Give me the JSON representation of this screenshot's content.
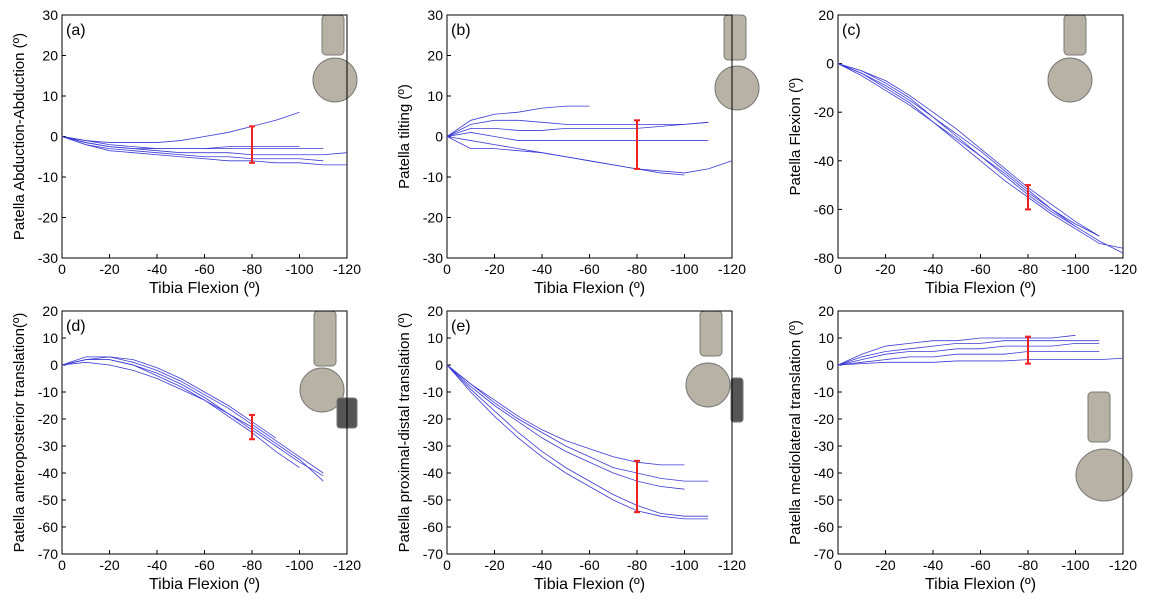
{
  "chart_data": [
    {
      "type": "line",
      "panel_label": "(a)",
      "xlabel": "Tibia Flexion (º)",
      "ylabel": "Patella Abduction-Abduction (º)",
      "xlim": [
        0,
        -120
      ],
      "xticks": [
        0,
        -20,
        -40,
        -60,
        -80,
        -100,
        -120
      ],
      "ylim": [
        -30,
        30
      ],
      "yticks": [
        -30,
        -20,
        -10,
        0,
        10,
        20,
        30
      ],
      "x": [
        0,
        -10,
        -20,
        -30,
        -40,
        -50,
        -60,
        -70,
        -80,
        -90,
        -100,
        -110,
        -120
      ],
      "series": [
        {
          "color": "#3a3ad8",
          "values": [
            0,
            -1,
            -1.5,
            -1.5,
            -1.5,
            -1,
            0,
            1,
            2.5,
            4,
            6,
            null,
            null
          ]
        },
        {
          "color": "#3a3ad8",
          "values": [
            0,
            -1,
            -2,
            -2.5,
            -3,
            -3,
            -3,
            -3,
            -3,
            -3,
            -3,
            -3,
            null
          ]
        },
        {
          "color": "#3a3ad8",
          "values": [
            0,
            -1.5,
            -2.5,
            -3,
            -3.5,
            -4,
            -4,
            -4,
            -4.5,
            -4.5,
            -4.5,
            -4.5,
            -4
          ]
        },
        {
          "color": "#3a3ad8",
          "values": [
            0,
            -2,
            -3,
            -3.5,
            -4,
            -4.5,
            -5,
            -5,
            -5.5,
            -5.5,
            -5.5,
            -6,
            null
          ]
        },
        {
          "color": "#3a3ad8",
          "values": [
            0,
            -2,
            -3.5,
            -4,
            -4.5,
            -5,
            -5.5,
            -6,
            -6,
            -6.5,
            -6.5,
            -7,
            -7
          ]
        },
        {
          "color": "#3a3ad8",
          "values": [
            0,
            -1.5,
            -2.5,
            -3,
            -3,
            -3,
            -3,
            -2.5,
            -2.5,
            -2.5,
            -2.5,
            null,
            null
          ]
        }
      ],
      "error_bar": {
        "x": -80,
        "value": -2,
        "error": 4.5,
        "color": "#ee2020"
      }
    },
    {
      "type": "line",
      "panel_label": "(b)",
      "xlabel": "Tibia Flexion (º)",
      "ylabel": "Patella tilting (º)",
      "xlim": [
        0,
        -120
      ],
      "xticks": [
        0,
        -20,
        -40,
        -60,
        -80,
        -100,
        -120
      ],
      "ylim": [
        -30,
        30
      ],
      "yticks": [
        -30,
        -20,
        -10,
        0,
        10,
        20,
        30
      ],
      "x": [
        0,
        -10,
        -20,
        -30,
        -40,
        -50,
        -60,
        -70,
        -80,
        -90,
        -100,
        -110,
        -120
      ],
      "series": [
        {
          "color": "#3a3ad8",
          "values": [
            0,
            4,
            5.5,
            6,
            7,
            7.5,
            7.5,
            null,
            null,
            null,
            null,
            null,
            null
          ]
        },
        {
          "color": "#3a3ad8",
          "values": [
            0,
            3,
            4,
            4,
            3.5,
            3,
            3,
            3,
            3,
            3,
            3,
            3.5,
            null
          ]
        },
        {
          "color": "#3a3ad8",
          "values": [
            0,
            2,
            2,
            1.5,
            1.5,
            2,
            2,
            2,
            2,
            2.5,
            3,
            3.5,
            null
          ]
        },
        {
          "color": "#3a3ad8",
          "values": [
            0,
            1,
            0,
            -1,
            -1,
            -1,
            -1,
            -1,
            -1,
            -1,
            -1,
            -1,
            null
          ]
        },
        {
          "color": "#3a3ad8",
          "values": [
            0,
            -1,
            -2,
            -3,
            -4,
            -5,
            -6,
            -7,
            -8,
            -9,
            -9.5,
            null,
            null
          ]
        },
        {
          "color": "#3a3ad8",
          "values": [
            0,
            -3,
            -3,
            -3.5,
            -4,
            -5,
            -6,
            -7,
            -8,
            -8.5,
            -9,
            -8,
            -6
          ]
        }
      ],
      "error_bar": {
        "x": -80,
        "value": -2,
        "error": 6,
        "color": "#ee2020"
      }
    },
    {
      "type": "line",
      "panel_label": "(c)",
      "xlabel": "Tibia Flexion (º)",
      "ylabel": "Patella Flexion (º)",
      "xlim": [
        0,
        -120
      ],
      "xticks": [
        0,
        -20,
        -40,
        -60,
        -80,
        -100,
        -120
      ],
      "ylim": [
        -80,
        20
      ],
      "yticks": [
        -80,
        -60,
        -40,
        -20,
        0,
        20
      ],
      "x": [
        0,
        -10,
        -20,
        -30,
        -40,
        -50,
        -60,
        -70,
        -80,
        -90,
        -100,
        -110,
        -120
      ],
      "series": [
        {
          "color": "#3a3ad8",
          "values": [
            0,
            -4,
            -10,
            -16,
            -24,
            -32,
            -40,
            -48,
            -55,
            -62,
            -68,
            -74,
            -76
          ]
        },
        {
          "color": "#3a3ad8",
          "values": [
            0,
            -3,
            -8,
            -14,
            -22,
            -30,
            -38,
            -46,
            -54,
            -61,
            -67,
            -73,
            -78
          ]
        },
        {
          "color": "#3a3ad8",
          "values": [
            0,
            -3,
            -7,
            -13,
            -20,
            -27,
            -35,
            -43,
            -51,
            -58,
            -65,
            -71,
            null
          ]
        },
        {
          "color": "#3a3ad8",
          "values": [
            0,
            -4,
            -9,
            -15,
            -22,
            -29,
            -36,
            -44,
            -52,
            -60,
            -67,
            null,
            null
          ]
        },
        {
          "color": "#3a3ad8",
          "values": [
            0,
            -5,
            -11,
            -17,
            -24,
            -31,
            -38,
            -45,
            -53,
            -60,
            -66,
            -71,
            null
          ]
        }
      ],
      "error_bar": {
        "x": -80,
        "value": -55,
        "error": 5,
        "color": "#ee2020"
      }
    },
    {
      "type": "line",
      "panel_label": "(d)",
      "xlabel": "Tibia Flexion (º)",
      "ylabel": "Patella anteroposterior translation(º)",
      "xlim": [
        0,
        -120
      ],
      "xticks": [
        0,
        -20,
        -40,
        -60,
        -80,
        -100,
        -120
      ],
      "ylim": [
        -70,
        20
      ],
      "yticks": [
        -70,
        -60,
        -50,
        -40,
        -30,
        -20,
        -10,
        0,
        10,
        20
      ],
      "x": [
        0,
        -10,
        -20,
        -30,
        -40,
        -50,
        -60,
        -70,
        -80,
        -90,
        -100,
        -110,
        -120
      ],
      "series": [
        {
          "color": "#3a3ad8",
          "values": [
            0,
            2,
            3,
            2,
            -1,
            -5,
            -10,
            -15,
            -21,
            -27,
            null,
            null,
            null
          ]
        },
        {
          "color": "#3a3ad8",
          "values": [
            0,
            2,
            2,
            0,
            -3,
            -7,
            -12,
            -18,
            -24,
            -30,
            -36,
            -41,
            null
          ]
        },
        {
          "color": "#3a3ad8",
          "values": [
            0,
            3,
            3,
            1,
            -2,
            -6,
            -11,
            -16,
            -22,
            -28,
            -34,
            -40,
            null
          ]
        },
        {
          "color": "#3a3ad8",
          "values": [
            0,
            1,
            0,
            -2,
            -5,
            -9,
            -13,
            -18,
            -23,
            -29,
            -35,
            -43,
            null
          ]
        },
        {
          "color": "#3a3ad8",
          "values": [
            0,
            2,
            2,
            0,
            -4,
            -8,
            -13,
            -19,
            -25,
            -32,
            -38,
            null,
            null
          ]
        }
      ],
      "error_bar": {
        "x": -80,
        "value": -23,
        "error": 4.5,
        "color": "#ee2020"
      }
    },
    {
      "type": "line",
      "panel_label": "(e)",
      "xlabel": "Tibia Flexion (º)",
      "ylabel": "Patella proximal-distal translation (º)",
      "xlim": [
        0,
        -120
      ],
      "xticks": [
        0,
        -20,
        -40,
        -60,
        -80,
        -100,
        -120
      ],
      "ylim": [
        -70,
        20
      ],
      "yticks": [
        -70,
        -60,
        -50,
        -40,
        -30,
        -20,
        -10,
        0,
        10,
        20
      ],
      "x": [
        0,
        -10,
        -20,
        -30,
        -40,
        -50,
        -60,
        -70,
        -80,
        -90,
        -100,
        -110,
        -120
      ],
      "series": [
        {
          "color": "#3a3ad8",
          "values": [
            0,
            -7,
            -13,
            -19,
            -24,
            -28,
            -31,
            -34,
            -36,
            -37,
            -37,
            null,
            null
          ]
        },
        {
          "color": "#3a3ad8",
          "values": [
            0,
            -8,
            -15,
            -21,
            -27,
            -32,
            -36,
            -40,
            -43,
            -45,
            -46,
            null,
            null
          ]
        },
        {
          "color": "#3a3ad8",
          "values": [
            0,
            -7,
            -14,
            -20,
            -25,
            -30,
            -34,
            -38,
            -40,
            -42,
            -43,
            -43,
            null
          ]
        },
        {
          "color": "#3a3ad8",
          "values": [
            0,
            -9,
            -17,
            -25,
            -32,
            -38,
            -43,
            -48,
            -52,
            -55,
            -56,
            -56,
            null
          ]
        },
        {
          "color": "#3a3ad8",
          "values": [
            0,
            -10,
            -19,
            -27,
            -34,
            -40,
            -45,
            -50,
            -54,
            -56,
            -57,
            -57,
            null
          ]
        }
      ],
      "error_bar": {
        "x": -80,
        "value": -45,
        "error": 9.5,
        "color": "#ee2020"
      }
    },
    {
      "type": "line",
      "xlabel": "Tibia Flexion (º)",
      "ylabel": "Patella mediolateral translation (º)",
      "xlim": [
        0,
        -120
      ],
      "xticks": [
        0,
        -20,
        -40,
        -60,
        -80,
        -100,
        -120
      ],
      "ylim": [
        -70,
        20
      ],
      "yticks": [
        -70,
        -60,
        -50,
        -40,
        -30,
        -20,
        -10,
        0,
        10,
        20
      ],
      "x": [
        0,
        -10,
        -20,
        -30,
        -40,
        -50,
        -60,
        -70,
        -80,
        -90,
        -100,
        -110,
        -120
      ],
      "series": [
        {
          "color": "#3a3ad8",
          "values": [
            0,
            4,
            7,
            8,
            9,
            9,
            10,
            10,
            10,
            10,
            11,
            null,
            null
          ]
        },
        {
          "color": "#3a3ad8",
          "values": [
            0,
            3,
            5,
            6,
            7,
            8,
            8,
            9,
            9,
            9,
            9,
            9,
            null
          ]
        },
        {
          "color": "#3a3ad8",
          "values": [
            0,
            2,
            4,
            5,
            5,
            6,
            6,
            7,
            7,
            7,
            8,
            8,
            null
          ]
        },
        {
          "color": "#3a3ad8",
          "values": [
            0,
            1,
            2,
            3,
            3,
            4,
            4,
            4,
            5,
            5,
            5,
            5,
            null
          ]
        },
        {
          "color": "#3a3ad8",
          "values": [
            0,
            0.5,
            1,
            1,
            1,
            1.5,
            1.5,
            1.5,
            2,
            2,
            2,
            2,
            2.5
          ]
        }
      ],
      "error_bar": {
        "x": -80,
        "value": 5.5,
        "error": 5,
        "color": "#ee2020"
      }
    }
  ]
}
